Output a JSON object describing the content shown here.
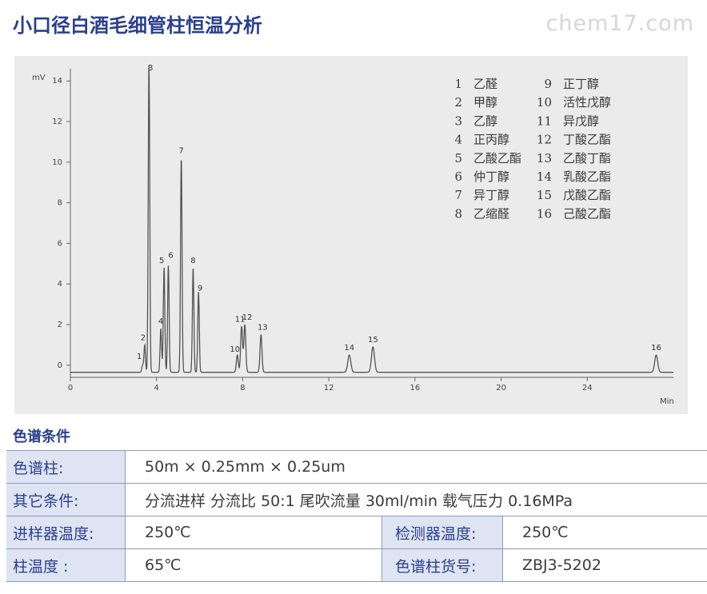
{
  "title": "小口径白酒毛细管柱恒温分析",
  "watermark": "chem17.com",
  "chart_data": {
    "type": "line",
    "ylabel": "mV",
    "xlabel": "Min",
    "xlim": [
      0,
      28
    ],
    "ylim": [
      -0.6,
      14.6
    ],
    "x_ticks": [
      0,
      4,
      8,
      12,
      16,
      20,
      24
    ],
    "y_ticks": [
      0,
      2,
      4,
      6,
      8,
      10,
      12,
      14
    ],
    "peaks": [
      {
        "id": "1",
        "rt": 3.35,
        "height": 0.0
      },
      {
        "id": "2",
        "rt": 3.45,
        "height": 1.0
      },
      {
        "id": "3",
        "rt": 3.65,
        "height": 15.0
      },
      {
        "id": "4",
        "rt": 4.2,
        "height": 1.8
      },
      {
        "id": "5",
        "rt": 4.35,
        "height": 4.8
      },
      {
        "id": "6",
        "rt": 4.55,
        "height": 4.9
      },
      {
        "id": "7",
        "rt": 5.15,
        "height": 10.2
      },
      {
        "id": "8",
        "rt": 5.7,
        "height": 4.8
      },
      {
        "id": "9",
        "rt": 5.95,
        "height": 3.6
      },
      {
        "id": "10",
        "rt": 7.75,
        "height": 0.5
      },
      {
        "id": "11",
        "rt": 7.95,
        "height": 1.9
      },
      {
        "id": "12",
        "rt": 8.1,
        "height": 2.0
      },
      {
        "id": "13",
        "rt": 8.85,
        "height": 1.5
      },
      {
        "id": "14",
        "rt": 12.95,
        "height": 0.5
      },
      {
        "id": "15",
        "rt": 14.05,
        "height": 0.9
      },
      {
        "id": "16",
        "rt": 27.2,
        "height": 0.5
      }
    ],
    "legend": [
      {
        "num": "1",
        "name": "乙醛"
      },
      {
        "num": "2",
        "name": "甲醇"
      },
      {
        "num": "3",
        "name": "乙醇"
      },
      {
        "num": "4",
        "name": "正丙醇"
      },
      {
        "num": "5",
        "name": "乙酸乙酯"
      },
      {
        "num": "6",
        "name": "仲丁醇"
      },
      {
        "num": "7",
        "name": "异丁醇"
      },
      {
        "num": "8",
        "name": "乙缩醛"
      },
      {
        "num": "9",
        "name": "正丁醇"
      },
      {
        "num": "10",
        "name": "活性戊醇"
      },
      {
        "num": "11",
        "name": "异戊醇"
      },
      {
        "num": "12",
        "name": "丁酸乙酯"
      },
      {
        "num": "13",
        "name": "乙酸丁酯"
      },
      {
        "num": "14",
        "name": "乳酸乙酯"
      },
      {
        "num": "15",
        "name": "戊酸乙酯"
      },
      {
        "num": "16",
        "name": "己酸乙酯"
      }
    ],
    "line_color": "#555555"
  },
  "conditions": {
    "section_title": "色谱条件",
    "column_label": "色谱柱:",
    "column_value": "50m × 0.25mm × 0.25um",
    "other_label": "其它条件:",
    "other_value": "分流进样 分流比 50:1 尾吹流量 30ml/min 载气压力 0.16MPa",
    "injector_label": "进样器温度:",
    "injector_value": "250℃",
    "detector_label": "检测器温度:",
    "detector_value": "250℃",
    "oven_label": "柱温度 :",
    "oven_value": "65℃",
    "part_label": "色谱柱货号:",
    "part_value": "ZBJ3-5202"
  }
}
